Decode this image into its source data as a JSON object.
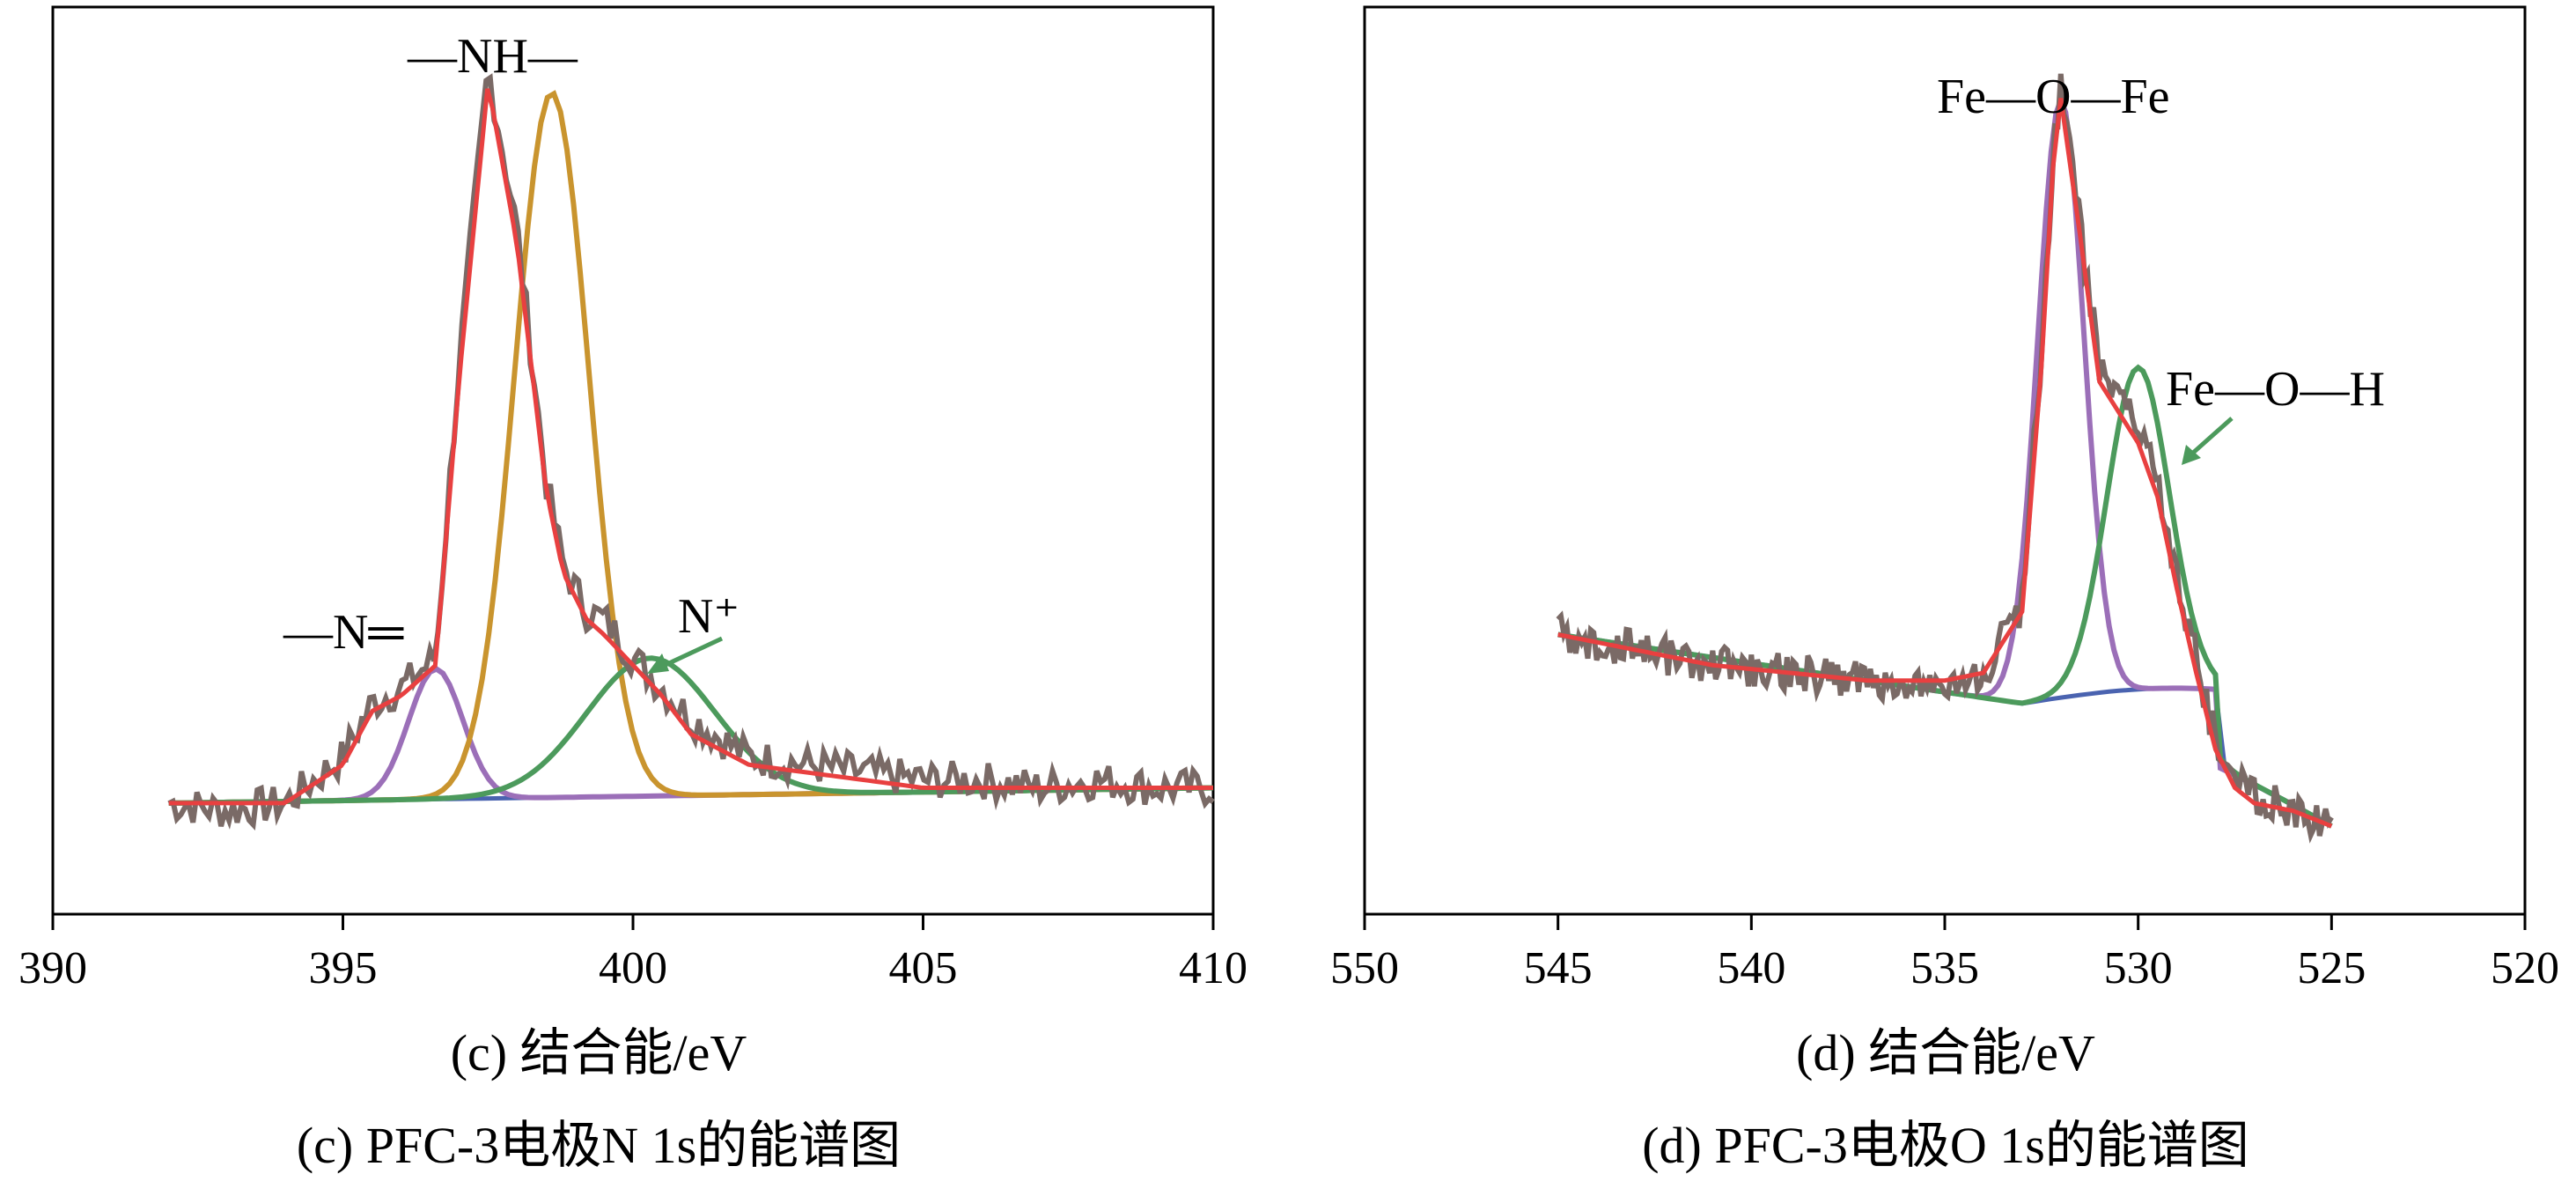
{
  "chart_data": [
    {
      "panel": "c",
      "type": "line",
      "title": "",
      "xlabel": "(c) 结合能/eV",
      "caption": "(c) PFC-3电极N 1s的能谱图",
      "ylabel": "",
      "xlim": [
        390,
        410
      ],
      "x_reversed": false,
      "xticks": [
        390,
        395,
        400,
        405,
        410
      ],
      "xtick_labels": [
        "390",
        "395",
        "400",
        "405",
        "410"
      ],
      "yticks": [],
      "grid": false,
      "annotations": [
        "—N═",
        "—NH—",
        "N⁺"
      ],
      "colors": {
        "raw": "#7a6a66",
        "envelope": "#e84040",
        "peak_n_double": "#9b6fb8",
        "peak_nh": "#c9942e",
        "peak_n_plus": "#4c9a5c",
        "background": "#4a63b0",
        "arrow": "#4c9a5c"
      },
      "series": [
        {
          "role": "raw",
          "x": [
            392.0,
            393.0,
            394.0,
            395.0,
            395.5,
            396.0,
            396.6,
            397.0,
            397.5,
            398.0,
            398.5,
            398.8,
            399.2,
            399.5,
            400.0,
            400.5,
            401.0,
            402.0,
            403.0,
            404.0,
            405.0,
            406.0,
            407.0,
            408.0,
            409.0,
            410.0
          ],
          "y": [
            0.03,
            0.02,
            0.03,
            0.09,
            0.16,
            0.18,
            0.22,
            0.6,
            0.99,
            0.78,
            0.45,
            0.34,
            0.28,
            0.27,
            0.22,
            0.18,
            0.14,
            0.09,
            0.08,
            0.07,
            0.06,
            0.06,
            0.05,
            0.06,
            0.05,
            0.05
          ]
        },
        {
          "role": "envelope",
          "x": [
            392.0,
            393.0,
            394.0,
            395.0,
            395.5,
            396.0,
            396.6,
            397.0,
            397.5,
            398.0,
            398.5,
            398.8,
            399.2,
            399.5,
            400.0,
            400.5,
            401.0,
            402.0,
            403.0,
            404.0,
            405.0,
            406.0,
            407.0,
            408.0,
            409.0,
            410.0
          ],
          "y": [
            0.03,
            0.03,
            0.03,
            0.08,
            0.15,
            0.17,
            0.21,
            0.58,
            0.97,
            0.76,
            0.44,
            0.33,
            0.27,
            0.25,
            0.21,
            0.17,
            0.12,
            0.08,
            0.07,
            0.06,
            0.05,
            0.05,
            0.05,
            0.05,
            0.05,
            0.05
          ]
        },
        {
          "role": "peak",
          "name": "—N═",
          "center": 396.6,
          "height": 0.17,
          "fwhm": 1.1,
          "baseline": 0.03
        },
        {
          "role": "peak",
          "name": "—NH—",
          "center": 398.6,
          "height": 0.92,
          "fwhm": 1.5,
          "baseline": 0.03
        },
        {
          "role": "peak",
          "name": "N⁺",
          "center": 400.3,
          "height": 0.18,
          "fwhm": 2.6,
          "baseline": 0.03
        }
      ]
    },
    {
      "panel": "d",
      "type": "line",
      "title": "",
      "xlabel": "(d) 结合能/eV",
      "caption": "(d) PFC-3电极O 1s的能谱图",
      "ylabel": "",
      "xlim": [
        550,
        520
      ],
      "x_reversed": true,
      "xticks": [
        550,
        545,
        540,
        535,
        530,
        525,
        520
      ],
      "xtick_labels": [
        "550",
        "545",
        "540",
        "535",
        "530",
        "525",
        "520"
      ],
      "yticks": [],
      "grid": false,
      "annotations": [
        "Fe—O—Fe",
        "Fe—O—H"
      ],
      "colors": {
        "raw": "#7a6a66",
        "envelope": "#e84040",
        "peak_feofe": "#9b6fb8",
        "peak_feoh": "#4c9a5c",
        "background": "#4a63b0",
        "arrow": "#4c9a5c"
      },
      "series": [
        {
          "role": "raw",
          "x": [
            545,
            543,
            541,
            539,
            537,
            535,
            534,
            533,
            532.5,
            532.2,
            532.0,
            531.5,
            531.0,
            530.5,
            530.0,
            529.5,
            529.0,
            528.5,
            528.0,
            527.5,
            527.0,
            526.0,
            525.0
          ],
          "y": [
            0.25,
            0.23,
            0.21,
            0.2,
            0.19,
            0.19,
            0.2,
            0.29,
            0.62,
            0.88,
            0.97,
            0.78,
            0.6,
            0.56,
            0.52,
            0.45,
            0.33,
            0.22,
            0.11,
            0.06,
            0.04,
            0.02,
            0.0
          ]
        },
        {
          "role": "envelope",
          "x": [
            545,
            543,
            541,
            539,
            537,
            535,
            534,
            533,
            532.5,
            532.2,
            532.0,
            531.5,
            531.0,
            530.5,
            530.0,
            529.5,
            529.0,
            528.5,
            528.0,
            527.5,
            527.0,
            526.0,
            525.0
          ],
          "y": [
            0.25,
            0.23,
            0.21,
            0.2,
            0.19,
            0.19,
            0.2,
            0.28,
            0.6,
            0.86,
            0.95,
            0.77,
            0.58,
            0.54,
            0.5,
            0.43,
            0.31,
            0.2,
            0.1,
            0.05,
            0.03,
            0.02,
            0.0
          ]
        },
        {
          "role": "peak",
          "name": "Fe—O—Fe",
          "center": 532.0,
          "height": 0.78,
          "fwhm": 1.4
        },
        {
          "role": "peak",
          "name": "Fe—O—H",
          "center": 530.0,
          "height": 0.42,
          "fwhm": 1.9
        }
      ]
    }
  ]
}
